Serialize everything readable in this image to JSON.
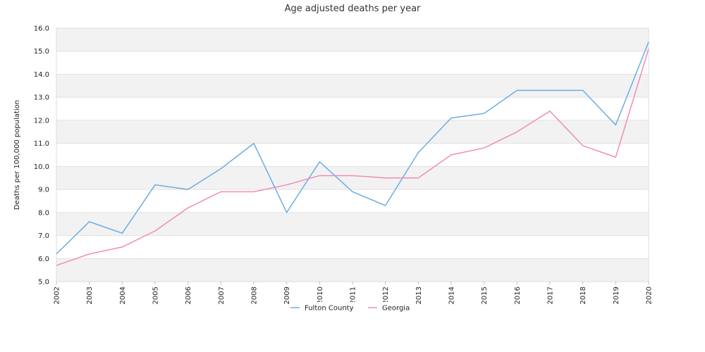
{
  "chart_data": {
    "type": "line",
    "title": "Age adjusted deaths per year",
    "xlabel": "",
    "ylabel": "Deaths per 100,000 population",
    "ylim": [
      5.0,
      16.0
    ],
    "yticks": [
      "5.0",
      "6.0",
      "7.0",
      "8.0",
      "9.0",
      "10.0",
      "11.0",
      "12.0",
      "13.0",
      "14.0",
      "15.0",
      "16.0"
    ],
    "categories": [
      "2002",
      "2003",
      "2004",
      "2005",
      "2006",
      "2007",
      "2008",
      "2009",
      "2010",
      "2011",
      "2012",
      "2013",
      "2014",
      "2015",
      "2016",
      "2017",
      "2018",
      "2019",
      "2020"
    ],
    "series": [
      {
        "name": "Fulton County",
        "color": "#6aaee6",
        "values": [
          6.2,
          7.6,
          7.1,
          9.2,
          9.0,
          9.9,
          11.0,
          8.0,
          10.2,
          8.9,
          8.3,
          10.6,
          12.1,
          12.3,
          13.3,
          13.3,
          13.3,
          11.8,
          15.4
        ]
      },
      {
        "name": "Georgia",
        "color": "#f08cba",
        "values": [
          5.7,
          6.2,
          6.5,
          7.2,
          8.2,
          8.9,
          8.9,
          9.2,
          9.6,
          9.6,
          9.5,
          9.5,
          10.5,
          10.8,
          11.5,
          12.4,
          10.9,
          10.4,
          15.1
        ]
      }
    ],
    "grid": true,
    "band_colors": [
      "#f2f2f2",
      "#ffffff"
    ],
    "legend_position": "bottom"
  }
}
